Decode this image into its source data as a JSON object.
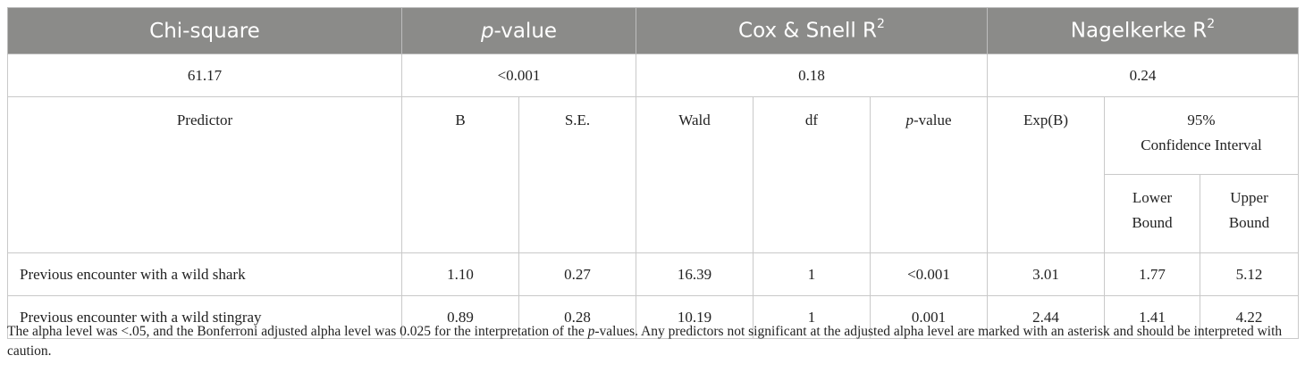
{
  "summary_header": {
    "chi_square": "Chi-square",
    "p_value_p": "p",
    "p_value_rest": "-value",
    "cox_snell": "Cox & Snell R",
    "cox_snell_sup": "2",
    "nagelkerke": "Nagelkerke R",
    "nagelkerke_sup": "2"
  },
  "summary_values": {
    "chi_square": "61.17",
    "p_value": "<0.001",
    "cox_snell": "0.18",
    "nagelkerke": "0.24"
  },
  "columns": {
    "predictor": "Predictor",
    "b": "B",
    "se": "S.E.",
    "wald": "Wald",
    "df": "df",
    "p_value_p": "p",
    "p_value_rest": "-value",
    "exp_b": "Exp(B)",
    "ci_line1": "95%",
    "ci_line2": "Confidence Interval",
    "lower_line1": "Lower",
    "lower_line2": "Bound",
    "upper_line1": "Upper",
    "upper_line2": "Bound"
  },
  "rows": [
    {
      "predictor": "Previous encounter with a wild shark",
      "b": "1.10",
      "se": "0.27",
      "wald": "16.39",
      "df": "1",
      "p": "<0.001",
      "exp_b": "3.01",
      "lower": "1.77",
      "upper": "5.12"
    },
    {
      "predictor": "Previous encounter with a wild stingray",
      "b": "0.89",
      "se": "0.28",
      "wald": "10.19",
      "df": "1",
      "p": "0.001",
      "exp_b": "2.44",
      "lower": "1.41",
      "upper": "4.22"
    }
  ],
  "note": {
    "part1": "The alpha level was <.05, and the Bonferroni adjusted alpha level was 0.025 for the interpretation of the ",
    "italic_p": "p",
    "part2": "-values. Any predictors not significant at the adjusted alpha level are marked with an asterisk and should be interpreted with caution."
  }
}
